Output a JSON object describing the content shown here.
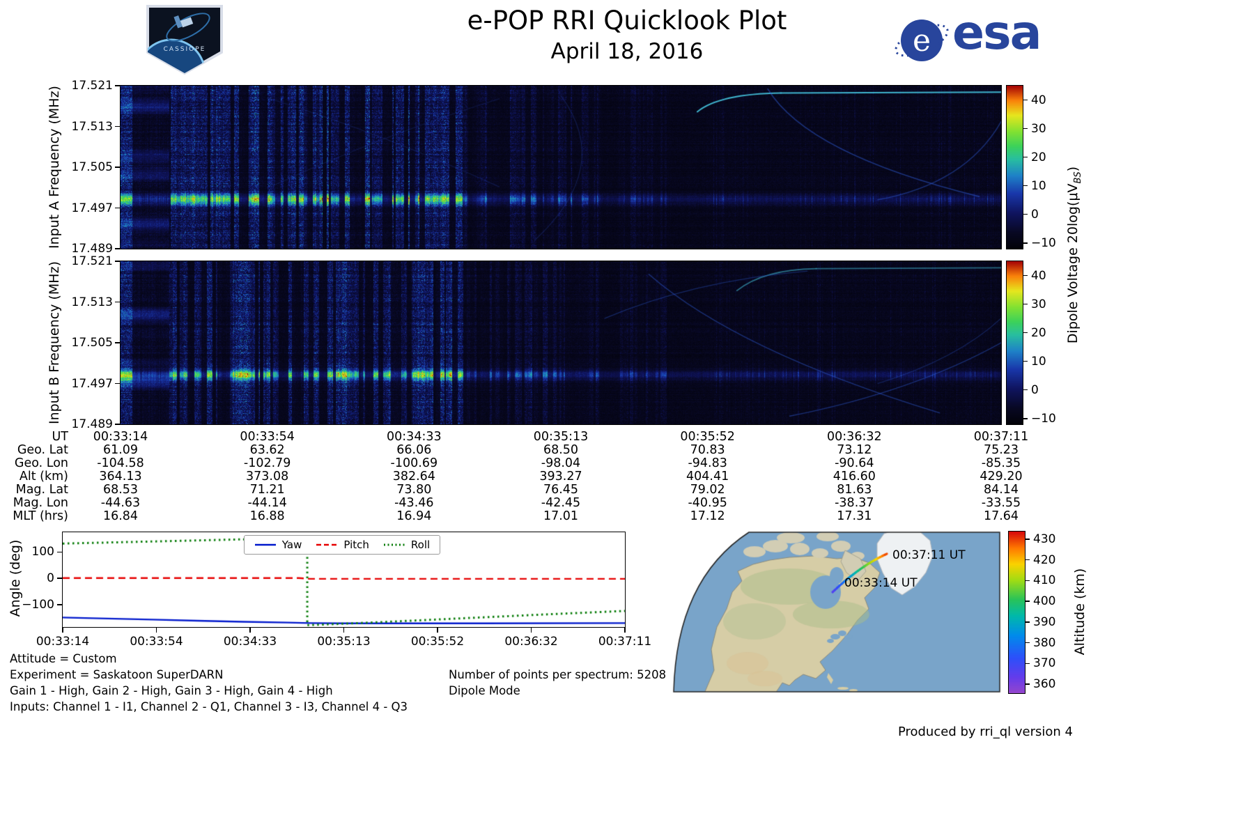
{
  "header": {
    "title": "e-POP RRI Quicklook Plot",
    "date": "April 18, 2016",
    "esa_logo_text": "esa",
    "patch_text": "CASSIOPE"
  },
  "voltage_colorbar": {
    "label_prefix": "Dipole Voltage 20log(μV",
    "label_sub": "BS",
    "label_suffix": ")",
    "range": [
      -12,
      45
    ],
    "tick_values": [
      40,
      30,
      20,
      10,
      0,
      -10
    ],
    "tick_labels": [
      "40",
      "30",
      "20",
      "10",
      "0",
      "−10"
    ]
  },
  "chart_data": [
    {
      "type": "heatmap",
      "name": "input-a-spectrogram",
      "ylabel": "Input A Frequency (MHz)",
      "ylim_mhz": [
        17.489,
        17.521
      ],
      "yticks": [
        "17.521",
        "17.513",
        "17.505",
        "17.497",
        "17.489"
      ],
      "x_range_ut": [
        "00:33:14",
        "00:37:11"
      ],
      "signal_band_mhz": 17.498,
      "value_range_db": [
        -12,
        45
      ],
      "features": [
        "bright continuous emission band near 17.498 MHz",
        "strong pulsed vertical transmission stripes from ~00:33:20 to ~00:34:45",
        "weaker pulsing until ~00:35:30, then mostly quiet background",
        "faint oblique echo traces and a thin cyan line near 17.520 MHz after ~00:36:00"
      ]
    },
    {
      "type": "heatmap",
      "name": "input-b-spectrogram",
      "ylabel": "Input B Frequency (MHz)",
      "ylim_mhz": [
        17.489,
        17.521
      ],
      "yticks": [
        "17.521",
        "17.513",
        "17.505",
        "17.497",
        "17.489"
      ],
      "x_range_ut": [
        "00:33:14",
        "00:37:11"
      ],
      "signal_band_mhz": 17.498,
      "value_range_db": [
        -12,
        45
      ],
      "features": [
        "bright continuous emission band near 17.498 MHz",
        "pulsed vertical transmission stripes strongest before ~00:34:45",
        "faint descending/ascending echo traces in right half"
      ]
    },
    {
      "type": "line",
      "name": "spacecraft-attitude-angles",
      "ylabel": "Angle (deg)",
      "ylim": [
        -185,
        175
      ],
      "yticks": [
        {
          "label": "100",
          "value": 100
        },
        {
          "label": "0",
          "value": 0
        },
        {
          "label": "−100",
          "value": -100
        }
      ],
      "xtick_labels": [
        "00:33:14",
        "00:33:54",
        "00:34:33",
        "00:35:13",
        "00:35:52",
        "00:36:32",
        "00:37:11"
      ],
      "legend_position": "top center",
      "series": [
        {
          "name": "Yaw",
          "color": "#0018cc",
          "style": "solid",
          "x": [
            0,
            0.08,
            0.16,
            0.24,
            0.32,
            0.4,
            0.44,
            0.5,
            0.6,
            0.75,
            1.0
          ],
          "y": [
            -149,
            -153,
            -157,
            -161,
            -165,
            -168,
            -170,
            -171,
            -171,
            -171,
            -170
          ]
        },
        {
          "name": "Pitch",
          "color": "#e60000",
          "style": "dashed",
          "x": [
            0,
            0.42,
            0.44,
            1.0
          ],
          "y": [
            1,
            1,
            -2,
            -2
          ]
        },
        {
          "name": "Roll",
          "color": "#0a7d0a",
          "style": "dotted",
          "x": [
            0,
            0.08,
            0.16,
            0.24,
            0.32,
            0.4,
            0.435,
            0.435,
            0.47,
            0.55,
            0.65,
            0.75,
            0.85,
            1.0
          ],
          "y": [
            132,
            136,
            140,
            144,
            148,
            151,
            152,
            -178,
            -175,
            -168,
            -158,
            -148,
            -138,
            -124
          ]
        }
      ]
    }
  ],
  "ephemeris": {
    "row_labels": [
      "UT",
      "Geo. Lat",
      "Geo. Lon",
      "Alt (km)",
      "Mag. Lat",
      "Mag. Lon",
      "MLT (hrs)"
    ],
    "rows": [
      [
        "00:33:14",
        "00:33:54",
        "00:34:33",
        "00:35:13",
        "00:35:52",
        "00:36:32",
        "00:37:11"
      ],
      [
        "61.09",
        "63.62",
        "66.06",
        "68.50",
        "70.83",
        "73.12",
        "75.23"
      ],
      [
        "-104.58",
        "-102.79",
        "-100.69",
        "-98.04",
        "-94.83",
        "-90.64",
        "-85.35"
      ],
      [
        "364.13",
        "373.08",
        "382.64",
        "393.27",
        "404.41",
        "416.60",
        "429.20"
      ],
      [
        "68.53",
        "71.21",
        "73.80",
        "76.45",
        "79.02",
        "81.63",
        "84.14"
      ],
      [
        "-44.63",
        "-44.14",
        "-43.46",
        "-42.45",
        "-40.95",
        "-38.37",
        "-33.55"
      ],
      [
        "16.84",
        "16.88",
        "16.94",
        "17.01",
        "17.12",
        "17.31",
        "17.64"
      ]
    ]
  },
  "map": {
    "start_label": "00:33:14 UT",
    "end_label": "00:37:11 UT",
    "colorbar_label": "Altitude (km)",
    "colorbar_range": [
      356,
      434
    ],
    "colorbar_tick_values": [
      430,
      420,
      410,
      400,
      390,
      380,
      370,
      360
    ],
    "colorbar_tick_labels": [
      "430",
      "420",
      "410",
      "400",
      "390",
      "380",
      "370",
      "360"
    ],
    "track_altitude_km": [
      364.13,
      429.2
    ]
  },
  "footer": {
    "attitude": "Attitude = Custom",
    "experiment": "Experiment = Saskatoon SuperDARN",
    "gains": "Gain 1 - High, Gain 2 - High, Gain 3 - High, Gain 4 - High",
    "inputs": "Inputs: Channel 1 - I1, Channel 2 - Q1, Channel 3 - I3, Channel 4 - Q3",
    "points": "Number of points per spectrum: 5208",
    "mode": "Dipole Mode",
    "produced": "Produced by rri_ql version 4"
  }
}
